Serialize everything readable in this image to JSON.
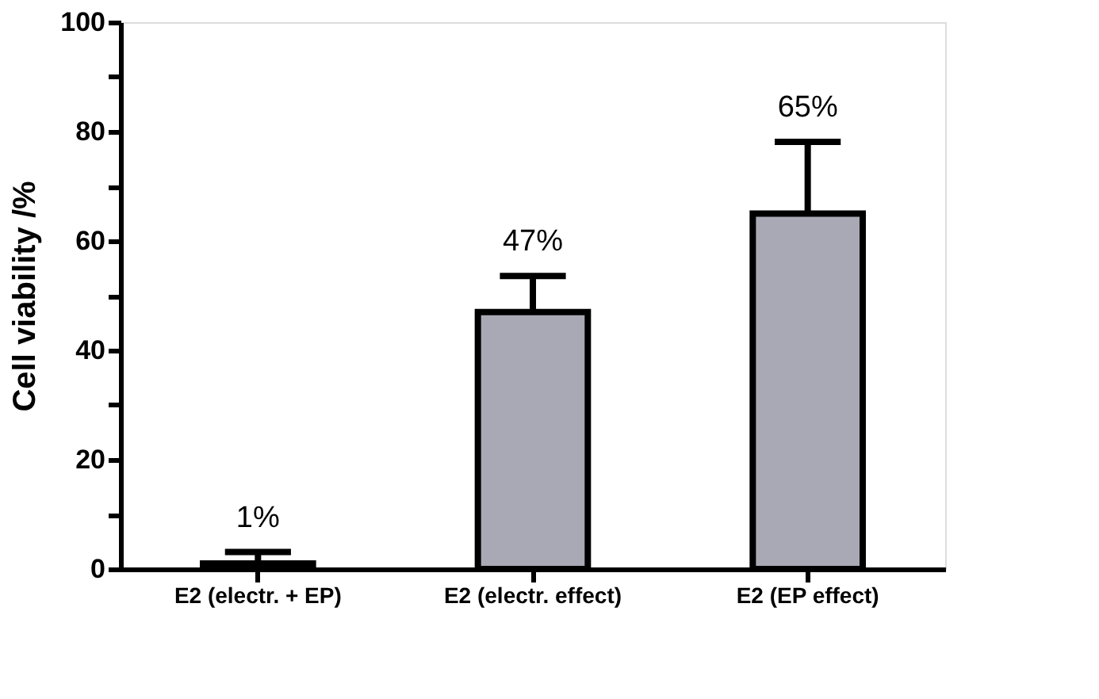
{
  "chart_data": {
    "type": "bar",
    "ylabel": "Cell viability /%",
    "categories": [
      "E2 (electr. + EP)",
      "E2 (electr. effect)",
      "E2 (EP effect)"
    ],
    "values": [
      1,
      47,
      65
    ],
    "errors": [
      [
        1,
        3.1
      ],
      [
        47,
        53.6
      ],
      [
        65,
        78.1
      ]
    ],
    "value_labels": [
      "1%",
      "47%",
      "65%"
    ],
    "color": "#a9a9b5",
    "ylim": [
      0,
      100
    ],
    "yticks": [
      0,
      {
        "value": 10,
        "label": null
      },
      20,
      {
        "value": 30,
        "label": null
      },
      40,
      {
        "value": 50,
        "label": null
      },
      60,
      {
        "value": 70,
        "label": null
      },
      80,
      {
        "value": 90,
        "label": null
      },
      100
    ],
    "grid": false
  }
}
